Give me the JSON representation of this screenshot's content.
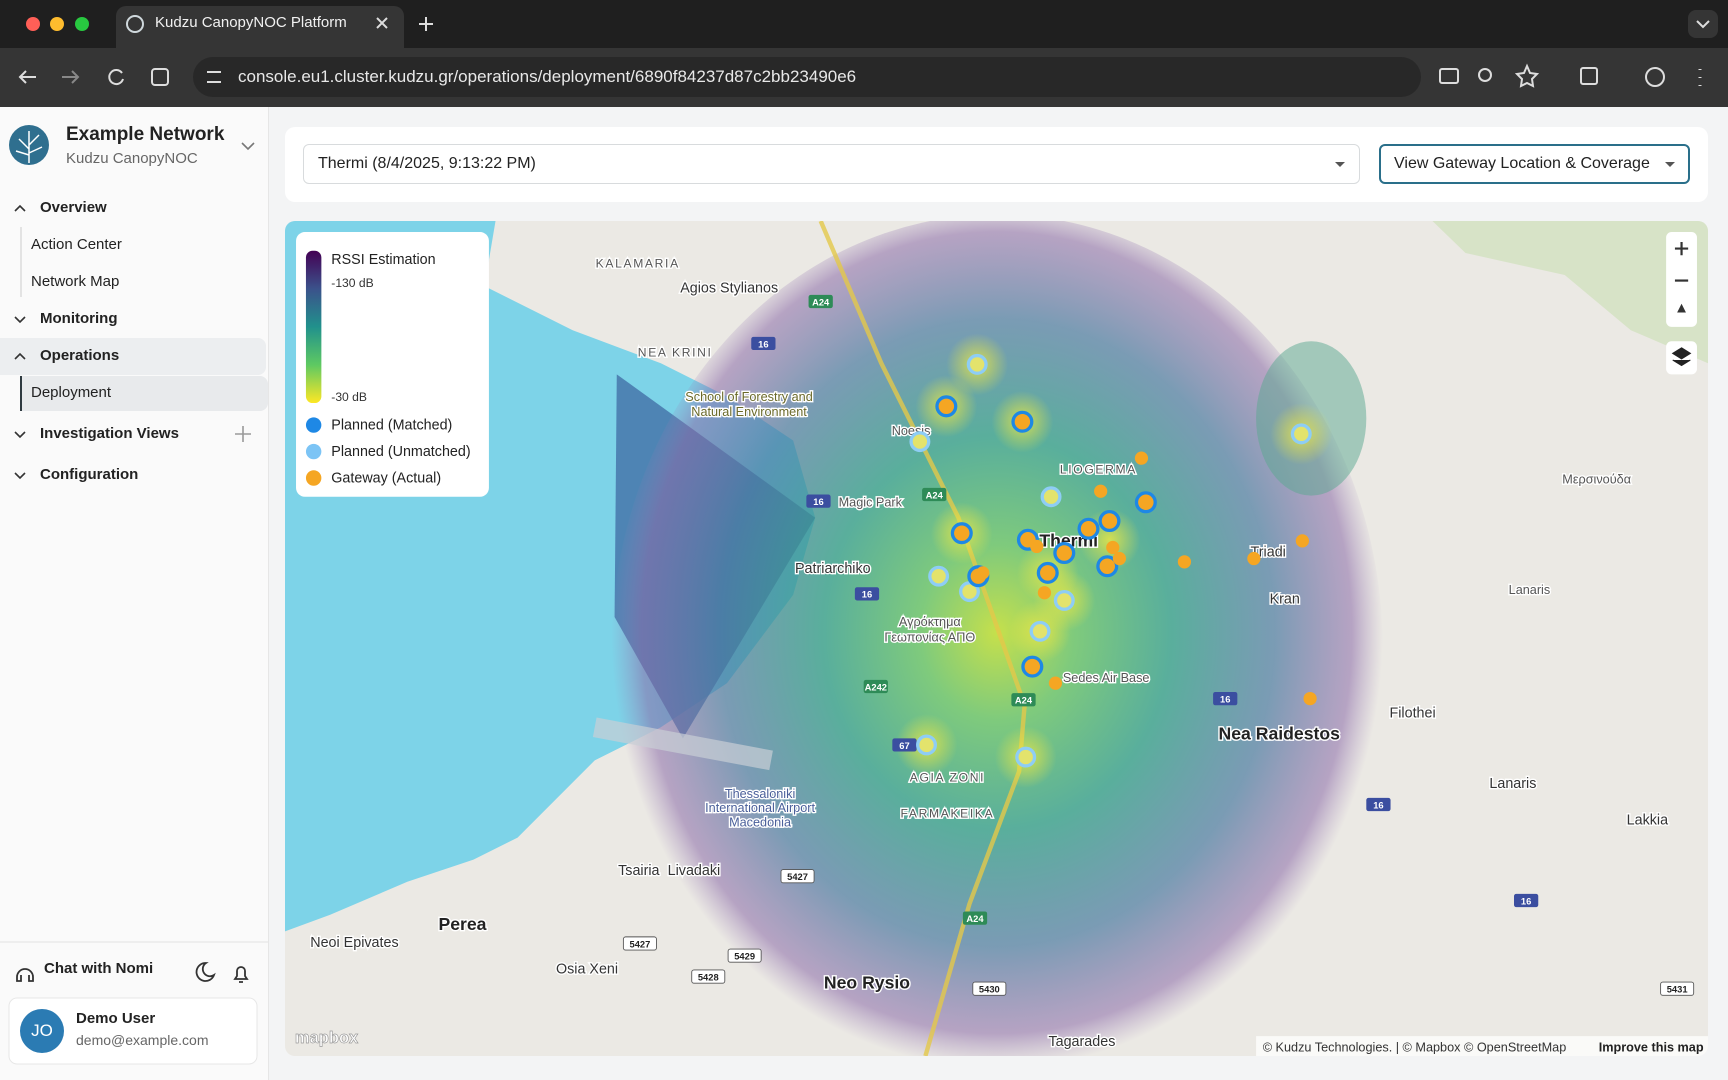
{
  "browser": {
    "tab_title": "Kudzu CanopyNOC Platform",
    "url": "console.eu1.cluster.kudzu.gr/operations/deployment/6890f84237d87c2bb23490e6"
  },
  "sidebar": {
    "org_name": "Example Network",
    "org_sub": "Kudzu CanopyNOC",
    "nav": [
      {
        "label": "Overview",
        "children": [
          "Action Center",
          "Network Map"
        ]
      },
      {
        "label": "Monitoring"
      },
      {
        "label": "Operations",
        "children": [
          "Deployment"
        ]
      },
      {
        "label": "Investigation Views"
      },
      {
        "label": "Configuration"
      }
    ],
    "chat": "Chat with Nomi",
    "user": {
      "initials": "JO",
      "name": "Demo User",
      "email": "demo@example.com"
    }
  },
  "toolbar": {
    "deployment_select": "Thermi (8/4/2025, 9:13:22 PM)",
    "view_select": "View Gateway Location & Coverage"
  },
  "map": {
    "legend": {
      "title": "RSSI Estimation",
      "top_label": "-130 dB",
      "bottom_label": "-30 dB",
      "items": [
        "Planned (Matched)",
        "Planned (Unmatched)",
        "Gateway (Actual)"
      ]
    },
    "places": [
      "KALAMARIA",
      "Agios Stylianos",
      "NEA KRINI",
      "School of Forestry and",
      "Natural Environment",
      "Noesis",
      "Magic Park",
      "Patriarchiko",
      "Thermi",
      "LIOGERMA",
      "Triadi",
      "Kran",
      "Lanaris",
      "Μερσινούδα",
      "Filothei",
      "Nea Raidestos",
      "Lanaris",
      "Lakkia",
      "Sedes Air Base",
      "Αγρόκτημα",
      "Γεωπονίας ΑΠΘ",
      "Thessaloniki",
      "International Airport",
      "Macedonia",
      "AGIA ZONI",
      "FARMAKEIKA",
      "Tsairia",
      "Livadaki",
      "Perea",
      "Neoi Epivates",
      "Osia Xeni",
      "Neo Rysio",
      "Tagarades"
    ],
    "shields": [
      "A24",
      "16",
      "A24",
      "16",
      "16",
      "A242",
      "A24",
      "67",
      "16",
      "16",
      "16",
      "5427",
      "5427",
      "5429",
      "5428",
      "5430",
      "5431",
      "A24"
    ],
    "logo": "mapbox",
    "attribution": "© Kudzu Technologies. | © Mapbox © OpenStreetMap",
    "improve": "Improve this map"
  }
}
